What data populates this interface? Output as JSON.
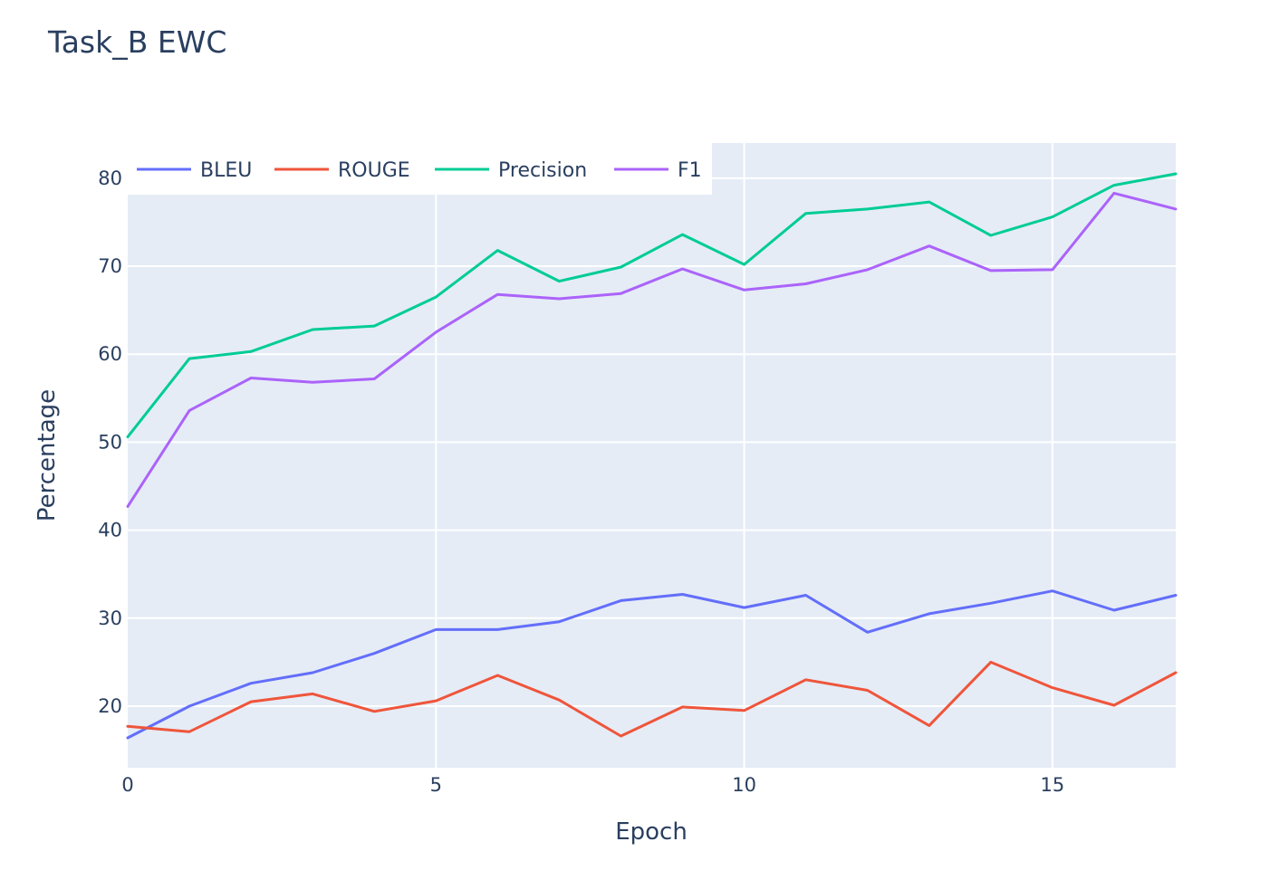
{
  "chart_data": {
    "type": "line",
    "title": "Task_B EWC",
    "xlabel": "Epoch",
    "ylabel": "Percentage",
    "x": [
      0,
      1,
      2,
      3,
      4,
      5,
      6,
      7,
      8,
      9,
      10,
      11,
      12,
      13,
      14,
      15,
      16,
      17
    ],
    "xlim": [
      0,
      17
    ],
    "ylim": [
      13,
      84
    ],
    "xticks": [
      0,
      5,
      10,
      15
    ],
    "yticks": [
      20,
      30,
      40,
      50,
      60,
      70,
      80
    ],
    "grid": true,
    "legend_position": "top-left, horizontal",
    "plot_bgcolor": "#e5ecf6",
    "series": [
      {
        "name": "BLEU",
        "color": "#636efa",
        "values": [
          16.4,
          20.0,
          22.6,
          23.8,
          26.0,
          28.7,
          28.7,
          29.6,
          32.0,
          32.7,
          31.2,
          32.6,
          28.4,
          30.5,
          31.7,
          33.1,
          30.9,
          32.6
        ]
      },
      {
        "name": "ROUGE",
        "color": "#ef553b",
        "values": [
          17.7,
          17.1,
          20.5,
          21.4,
          19.4,
          20.6,
          23.5,
          20.7,
          16.6,
          19.9,
          19.5,
          23.0,
          21.8,
          17.8,
          25.0,
          22.1,
          20.1,
          23.8
        ]
      },
      {
        "name": "Precision",
        "color": "#00cc96",
        "values": [
          50.6,
          59.5,
          60.3,
          62.8,
          63.2,
          66.5,
          71.8,
          68.3,
          69.9,
          73.6,
          70.2,
          76.0,
          76.5,
          77.3,
          73.5,
          75.6,
          79.2,
          80.5
        ]
      },
      {
        "name": "F1",
        "color": "#ab63fa",
        "values": [
          42.7,
          53.6,
          57.3,
          56.8,
          57.2,
          62.5,
          66.8,
          66.3,
          66.9,
          69.7,
          67.3,
          68.0,
          69.6,
          72.3,
          69.5,
          69.6,
          78.3,
          76.5
        ]
      }
    ]
  }
}
